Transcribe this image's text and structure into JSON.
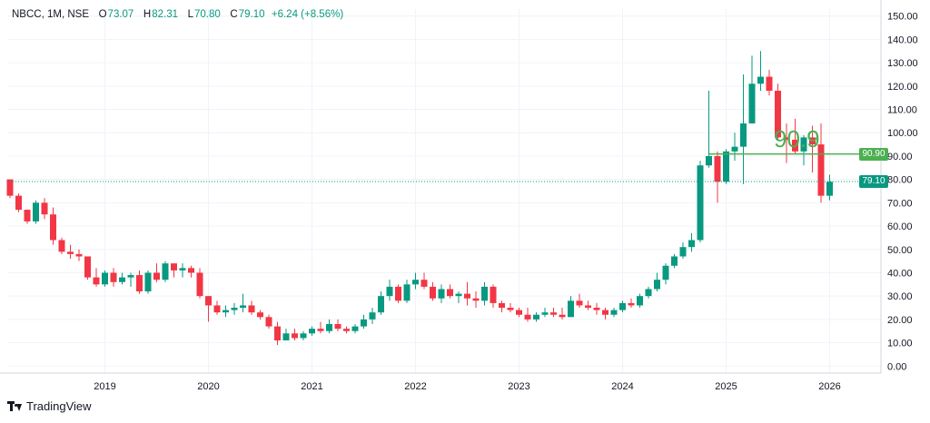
{
  "header": {
    "symbol": "NBCC, 1M, NSE",
    "open_label": "O",
    "open": "73.07",
    "high_label": "H",
    "high": "82.31",
    "low_label": "L",
    "low": "70.80",
    "close_label": "C",
    "close": "79.10",
    "change": "+6.24 (+8.56%)"
  },
  "annotation": {
    "value": "90.9",
    "level_tag": "90.90",
    "last_price_tag": "79.10"
  },
  "footer": {
    "brand": "TradingView"
  },
  "colors": {
    "up": "#089981",
    "down": "#f23645",
    "line": "#4caf50",
    "grid": "#f0f3fa",
    "text": "#131722"
  },
  "chart_data": {
    "type": "candlestick",
    "title": "NBCC, 1M, NSE",
    "xlabel": "",
    "ylabel": "",
    "ylim": [
      -3,
      153
    ],
    "y_ticks": [
      "150.00",
      "140.00",
      "130.00",
      "120.00",
      "110.00",
      "100.00",
      "90.00",
      "80.00",
      "70.00",
      "60.00",
      "50.00",
      "40.00",
      "30.00",
      "20.00",
      "10.00",
      "0.00"
    ],
    "x_ticks": [
      "2019",
      "2020",
      "2021",
      "2022",
      "2023",
      "2024",
      "2025",
      "2026"
    ],
    "x_start": "2018-02",
    "horizontal_line": 90.9,
    "last_price": 79.1,
    "candles": [
      [
        80,
        80,
        72,
        73
      ],
      [
        73,
        74,
        66,
        67
      ],
      [
        67,
        67,
        61,
        62
      ],
      [
        62,
        71,
        61,
        70
      ],
      [
        70,
        72,
        63,
        65
      ],
      [
        65,
        68,
        52,
        54
      ],
      [
        54,
        55,
        48,
        49
      ],
      [
        49,
        52,
        46,
        48
      ],
      [
        48,
        50,
        45,
        47
      ],
      [
        47,
        47,
        37,
        38
      ],
      [
        38,
        42,
        34,
        35
      ],
      [
        35,
        41,
        34,
        40
      ],
      [
        40,
        42,
        34,
        36
      ],
      [
        36,
        40,
        35,
        38
      ],
      [
        38,
        40,
        34,
        39
      ],
      [
        39,
        41,
        31,
        32
      ],
      [
        32,
        41,
        31,
        40
      ],
      [
        40,
        44,
        36,
        37
      ],
      [
        37,
        45,
        36,
        44
      ],
      [
        44,
        44,
        38,
        41
      ],
      [
        41,
        44,
        38,
        42
      ],
      [
        42,
        43,
        38,
        40
      ],
      [
        40,
        42,
        29,
        30
      ],
      [
        30,
        30,
        19,
        26
      ],
      [
        26,
        28,
        22,
        23
      ],
      [
        23,
        26,
        21,
        24
      ],
      [
        24,
        27,
        22,
        25
      ],
      [
        25,
        31,
        23,
        26
      ],
      [
        26,
        28,
        22,
        23
      ],
      [
        23,
        24,
        20,
        21
      ],
      [
        21,
        22,
        16,
        17
      ],
      [
        17,
        19,
        9,
        11
      ],
      [
        11,
        16,
        11,
        14
      ],
      [
        14,
        16,
        11,
        12
      ],
      [
        12,
        15,
        11,
        14
      ],
      [
        14,
        17,
        13,
        16
      ],
      [
        16,
        19,
        14,
        15
      ],
      [
        15,
        20,
        14,
        18
      ],
      [
        18,
        20,
        15,
        16
      ],
      [
        16,
        17,
        14,
        15
      ],
      [
        15,
        18,
        14,
        17
      ],
      [
        17,
        22,
        16,
        20
      ],
      [
        20,
        25,
        18,
        23
      ],
      [
        23,
        32,
        22,
        30
      ],
      [
        30,
        37,
        28,
        34
      ],
      [
        34,
        35,
        27,
        28
      ],
      [
        28,
        37,
        27,
        35
      ],
      [
        35,
        40,
        33,
        37
      ],
      [
        37,
        40,
        33,
        34
      ],
      [
        34,
        36,
        28,
        29
      ],
      [
        29,
        35,
        27,
        33
      ],
      [
        33,
        35,
        29,
        30
      ],
      [
        30,
        32,
        27,
        31
      ],
      [
        31,
        36,
        26,
        29
      ],
      [
        29,
        32,
        25,
        28
      ],
      [
        28,
        36,
        26,
        34
      ],
      [
        34,
        35,
        25,
        27
      ],
      [
        27,
        28,
        23,
        25
      ],
      [
        25,
        27,
        23,
        24
      ],
      [
        24,
        25,
        21,
        22
      ],
      [
        22,
        25,
        19,
        20
      ],
      [
        20,
        23,
        19,
        22
      ],
      [
        22,
        25,
        21,
        23
      ],
      [
        23,
        25,
        21,
        22
      ],
      [
        22,
        25,
        20,
        21
      ],
      [
        21,
        30,
        21,
        28
      ],
      [
        28,
        31,
        25,
        26
      ],
      [
        26,
        28,
        24,
        25
      ],
      [
        25,
        27,
        22,
        24
      ],
      [
        24,
        25,
        20,
        22
      ],
      [
        22,
        25,
        21,
        24
      ],
      [
        24,
        28,
        23,
        27
      ],
      [
        27,
        29,
        25,
        26
      ],
      [
        26,
        31,
        25,
        30
      ],
      [
        30,
        34,
        29,
        33
      ],
      [
        33,
        40,
        32,
        37
      ],
      [
        37,
        44,
        35,
        43
      ],
      [
        43,
        48,
        42,
        47
      ],
      [
        47,
        53,
        46,
        51
      ],
      [
        51,
        57,
        49,
        54
      ],
      [
        54,
        88,
        53,
        86
      ],
      [
        86,
        118,
        85,
        90
      ],
      [
        90,
        92,
        70,
        79
      ],
      [
        79,
        93,
        78,
        92
      ],
      [
        92,
        100,
        88,
        94
      ],
      [
        94,
        125,
        78,
        104
      ],
      [
        104,
        133,
        104,
        121
      ],
      [
        121,
        135,
        118,
        124
      ],
      [
        124,
        127,
        116,
        118
      ],
      [
        118,
        121,
        97,
        98
      ],
      [
        98,
        104,
        87,
        97
      ],
      [
        97,
        106,
        91,
        92
      ],
      [
        92,
        99,
        86,
        98
      ],
      [
        98,
        103,
        83,
        95
      ],
      [
        95,
        104,
        70,
        73
      ],
      [
        73,
        82,
        71,
        79
      ]
    ]
  }
}
